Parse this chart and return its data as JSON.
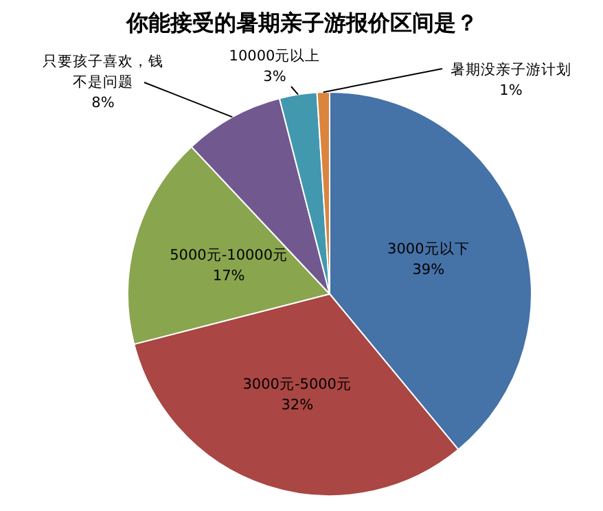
{
  "chart_data": {
    "type": "pie",
    "title": "你能接受的暑期亲子游报价区间是？",
    "categories": [
      "3000元以下",
      "3000元-5000元",
      "5000元-10000元",
      "只要孩子喜欢，钱不是问题",
      "10000元以上",
      "暑期没亲子游计划"
    ],
    "values": [
      39,
      32,
      17,
      8,
      3,
      1
    ],
    "value_labels": [
      "39%",
      "32%",
      "17%",
      "8%",
      "3%",
      "1%"
    ],
    "colors": [
      "#4572a7",
      "#aa4643",
      "#89a54e",
      "#71588f",
      "#4198af",
      "#db843d"
    ]
  }
}
